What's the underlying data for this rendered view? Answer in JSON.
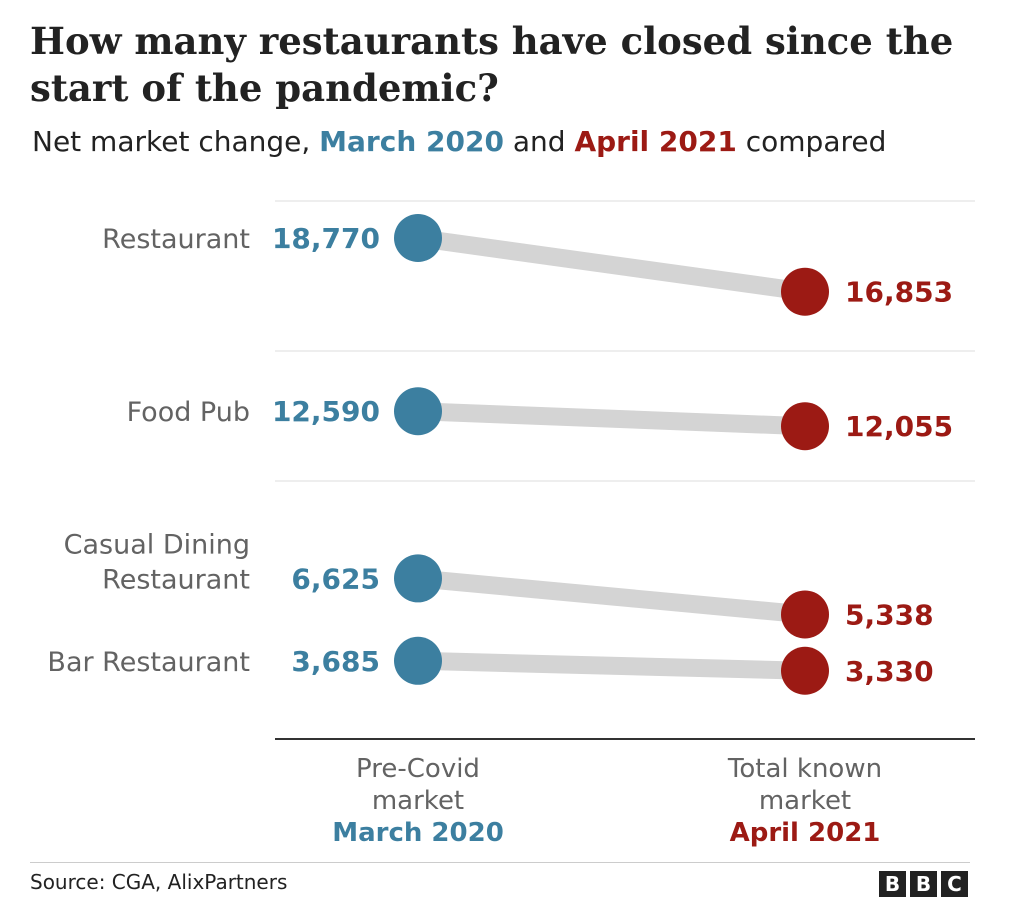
{
  "title": "How many restaurants have closed since the start of the pandemic?",
  "subtitle": {
    "prefix": "Net market change, ",
    "series_a": "March 2020",
    "middle": " and ",
    "series_b": "April 2021",
    "suffix": " compared"
  },
  "colors": {
    "march": "#3c7fa0",
    "april": "#9c1a14",
    "connector": "#d4d4d4",
    "label": "#636363",
    "rule": "#dddddd",
    "axis": "#333333"
  },
  "chart_data": {
    "type": "dumbbell",
    "categories": [
      [
        "Restaurant"
      ],
      [
        "Food Pub"
      ],
      [
        "Casual Dining",
        "Restaurant"
      ],
      [
        "Bar Restaurant"
      ]
    ],
    "series": [
      {
        "name": "March 2020",
        "values": [
          18770,
          12590,
          6625,
          3685
        ],
        "labels": [
          "18,770",
          "12,590",
          "6,625",
          "3,685"
        ]
      },
      {
        "name": "April 2021",
        "values": [
          16853,
          12055,
          5338,
          3330
        ],
        "labels": [
          "16,853",
          "12,055",
          "5,338",
          "3,330"
        ]
      }
    ],
    "x_categories": [
      {
        "lines": [
          "Pre-Covid",
          "market"
        ],
        "emphasis": "March 2020"
      },
      {
        "lines": [
          "Total known",
          "market"
        ],
        "emphasis": "April 2021"
      }
    ]
  },
  "footer": {
    "source": "Source: CGA, AlixPartners",
    "logo_letters": [
      "B",
      "B",
      "C"
    ]
  }
}
